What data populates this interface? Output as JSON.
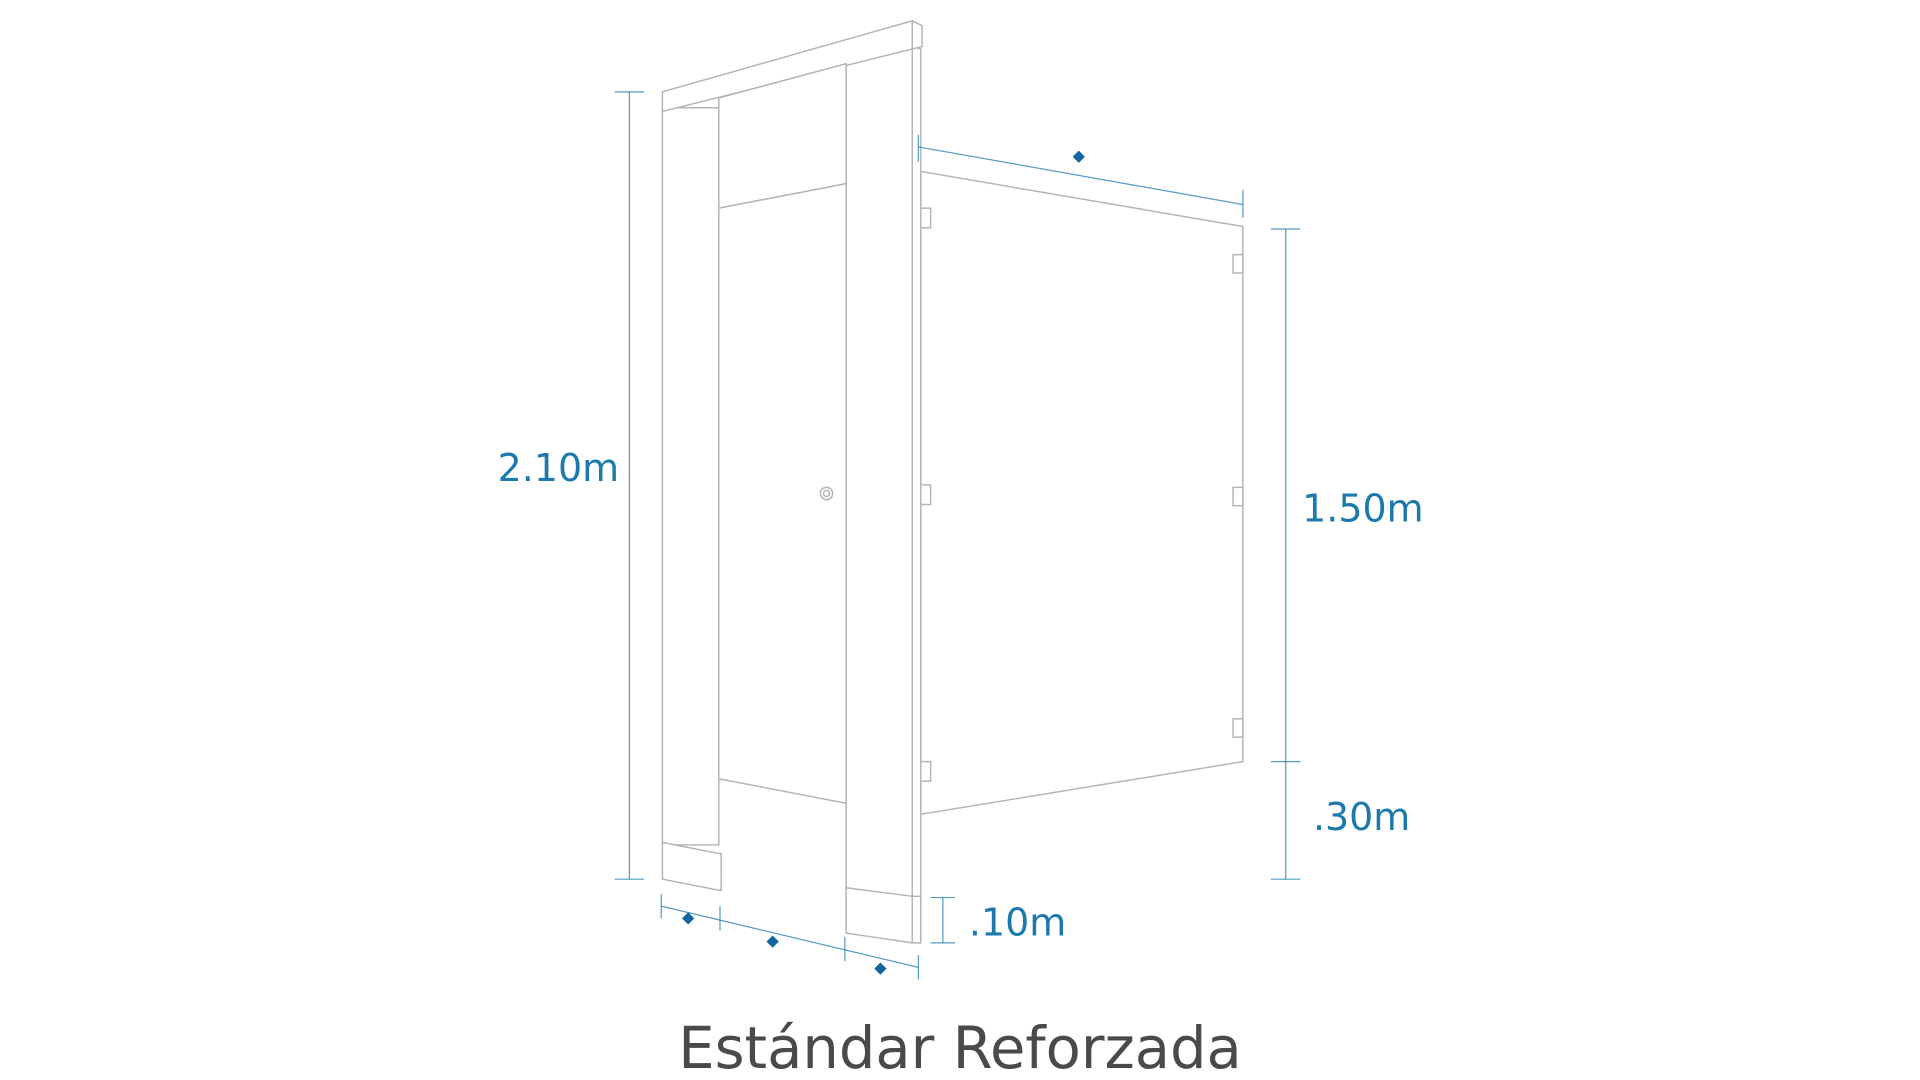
{
  "title": "Estándar Reforzada",
  "dimensions": {
    "total_height": "2.10m",
    "panel_height": "1.50m",
    "panel_clearance": ".30m",
    "shoe_height": ".10m"
  }
}
